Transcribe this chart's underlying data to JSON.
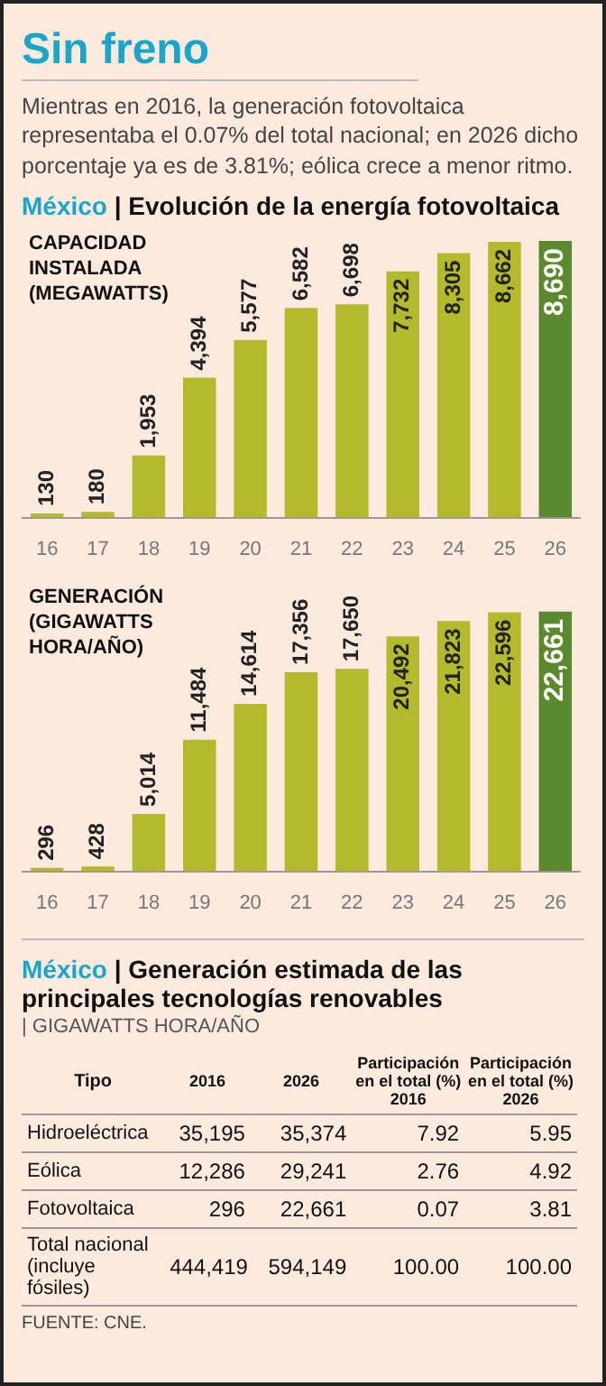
{
  "chart_data": [
    {
      "type": "bar",
      "title": "Sin freno",
      "subtitle": "Mientras en 2016, la generación fotovoltaica representaba el 0.07% del total nacional; en 2026 dicho porcentaje ya es de 3.81%; eólica crece a menor ritmo.",
      "annotations": [
        "México | Evolución de la energía fotovoltaica"
      ],
      "ylabel": "CAPACIDAD INSTALADA (MEGAWATTS)",
      "categories": [
        "16",
        "17",
        "18",
        "19",
        "20",
        "21",
        "22",
        "23",
        "24",
        "25",
        "26"
      ],
      "values": [
        130,
        180,
        1953,
        4394,
        5577,
        6582,
        6698,
        7732,
        8305,
        8662,
        8690
      ],
      "value_labels": [
        "130",
        "180",
        "1,953",
        "4,394",
        "5,577",
        "6,582",
        "6,698",
        "7,732",
        "8,305",
        "8,662",
        "8,690"
      ],
      "colors": [
        "#b3bb2c",
        "#b3bb2c",
        "#b3bb2c",
        "#b3bb2c",
        "#b3bb2c",
        "#b3bb2c",
        "#b3bb2c",
        "#b3bb2c",
        "#b3bb2c",
        "#b3bb2c",
        "#5b8a2e"
      ],
      "data_labels": true
    },
    {
      "type": "bar",
      "ylabel": "GENERACIÓN (GIGAWATTS HORA/AÑO)",
      "categories": [
        "16",
        "17",
        "18",
        "19",
        "20",
        "21",
        "22",
        "23",
        "24",
        "25",
        "26"
      ],
      "values": [
        296,
        428,
        5014,
        11484,
        14614,
        17356,
        17650,
        20492,
        21823,
        22596,
        22661
      ],
      "value_labels": [
        "296",
        "428",
        "5,014",
        "11,484",
        "14,614",
        "17,356",
        "17,650",
        "20,492",
        "21,823",
        "22,596",
        "22,661"
      ],
      "colors": [
        "#b3bb2c",
        "#b3bb2c",
        "#b3bb2c",
        "#b3bb2c",
        "#b3bb2c",
        "#b3bb2c",
        "#b3bb2c",
        "#b3bb2c",
        "#b3bb2c",
        "#b3bb2c",
        "#5b8a2e"
      ],
      "data_labels": true
    },
    {
      "type": "heatmap",
      "title": "México | Generación estimada de las principales tecnologías renovables",
      "subtitle": "| GIGAWATTS HORA/AÑO",
      "ylabel": "Tipo",
      "categories": [
        "2016",
        "2026",
        "Participación en el total (%) 2016",
        "Participación en el total (%) 2026"
      ],
      "y_categories": [
        "Hidroeléctrica",
        "Eólica",
        "Fotovoltaica",
        "Total nacional (incluye fósiles)"
      ],
      "cells": [
        [
          35195,
          35374,
          7.92,
          5.95
        ],
        [
          12286,
          29241,
          2.76,
          4.92
        ],
        [
          296,
          22661,
          0.07,
          3.81
        ],
        [
          444419,
          594149,
          100,
          100
        ]
      ],
      "cell_labels": [
        [
          "35,195",
          "35,374",
          "7.92",
          "5.95"
        ],
        [
          "12,286",
          "29,241",
          "2.76",
          "4.92"
        ],
        [
          "296",
          "22,661",
          "0.07",
          "3.81"
        ],
        [
          "444,419",
          "594,149",
          "100.00",
          "100.00"
        ]
      ],
      "annotations": [
        "FUENTE: CNE."
      ]
    }
  ]
}
